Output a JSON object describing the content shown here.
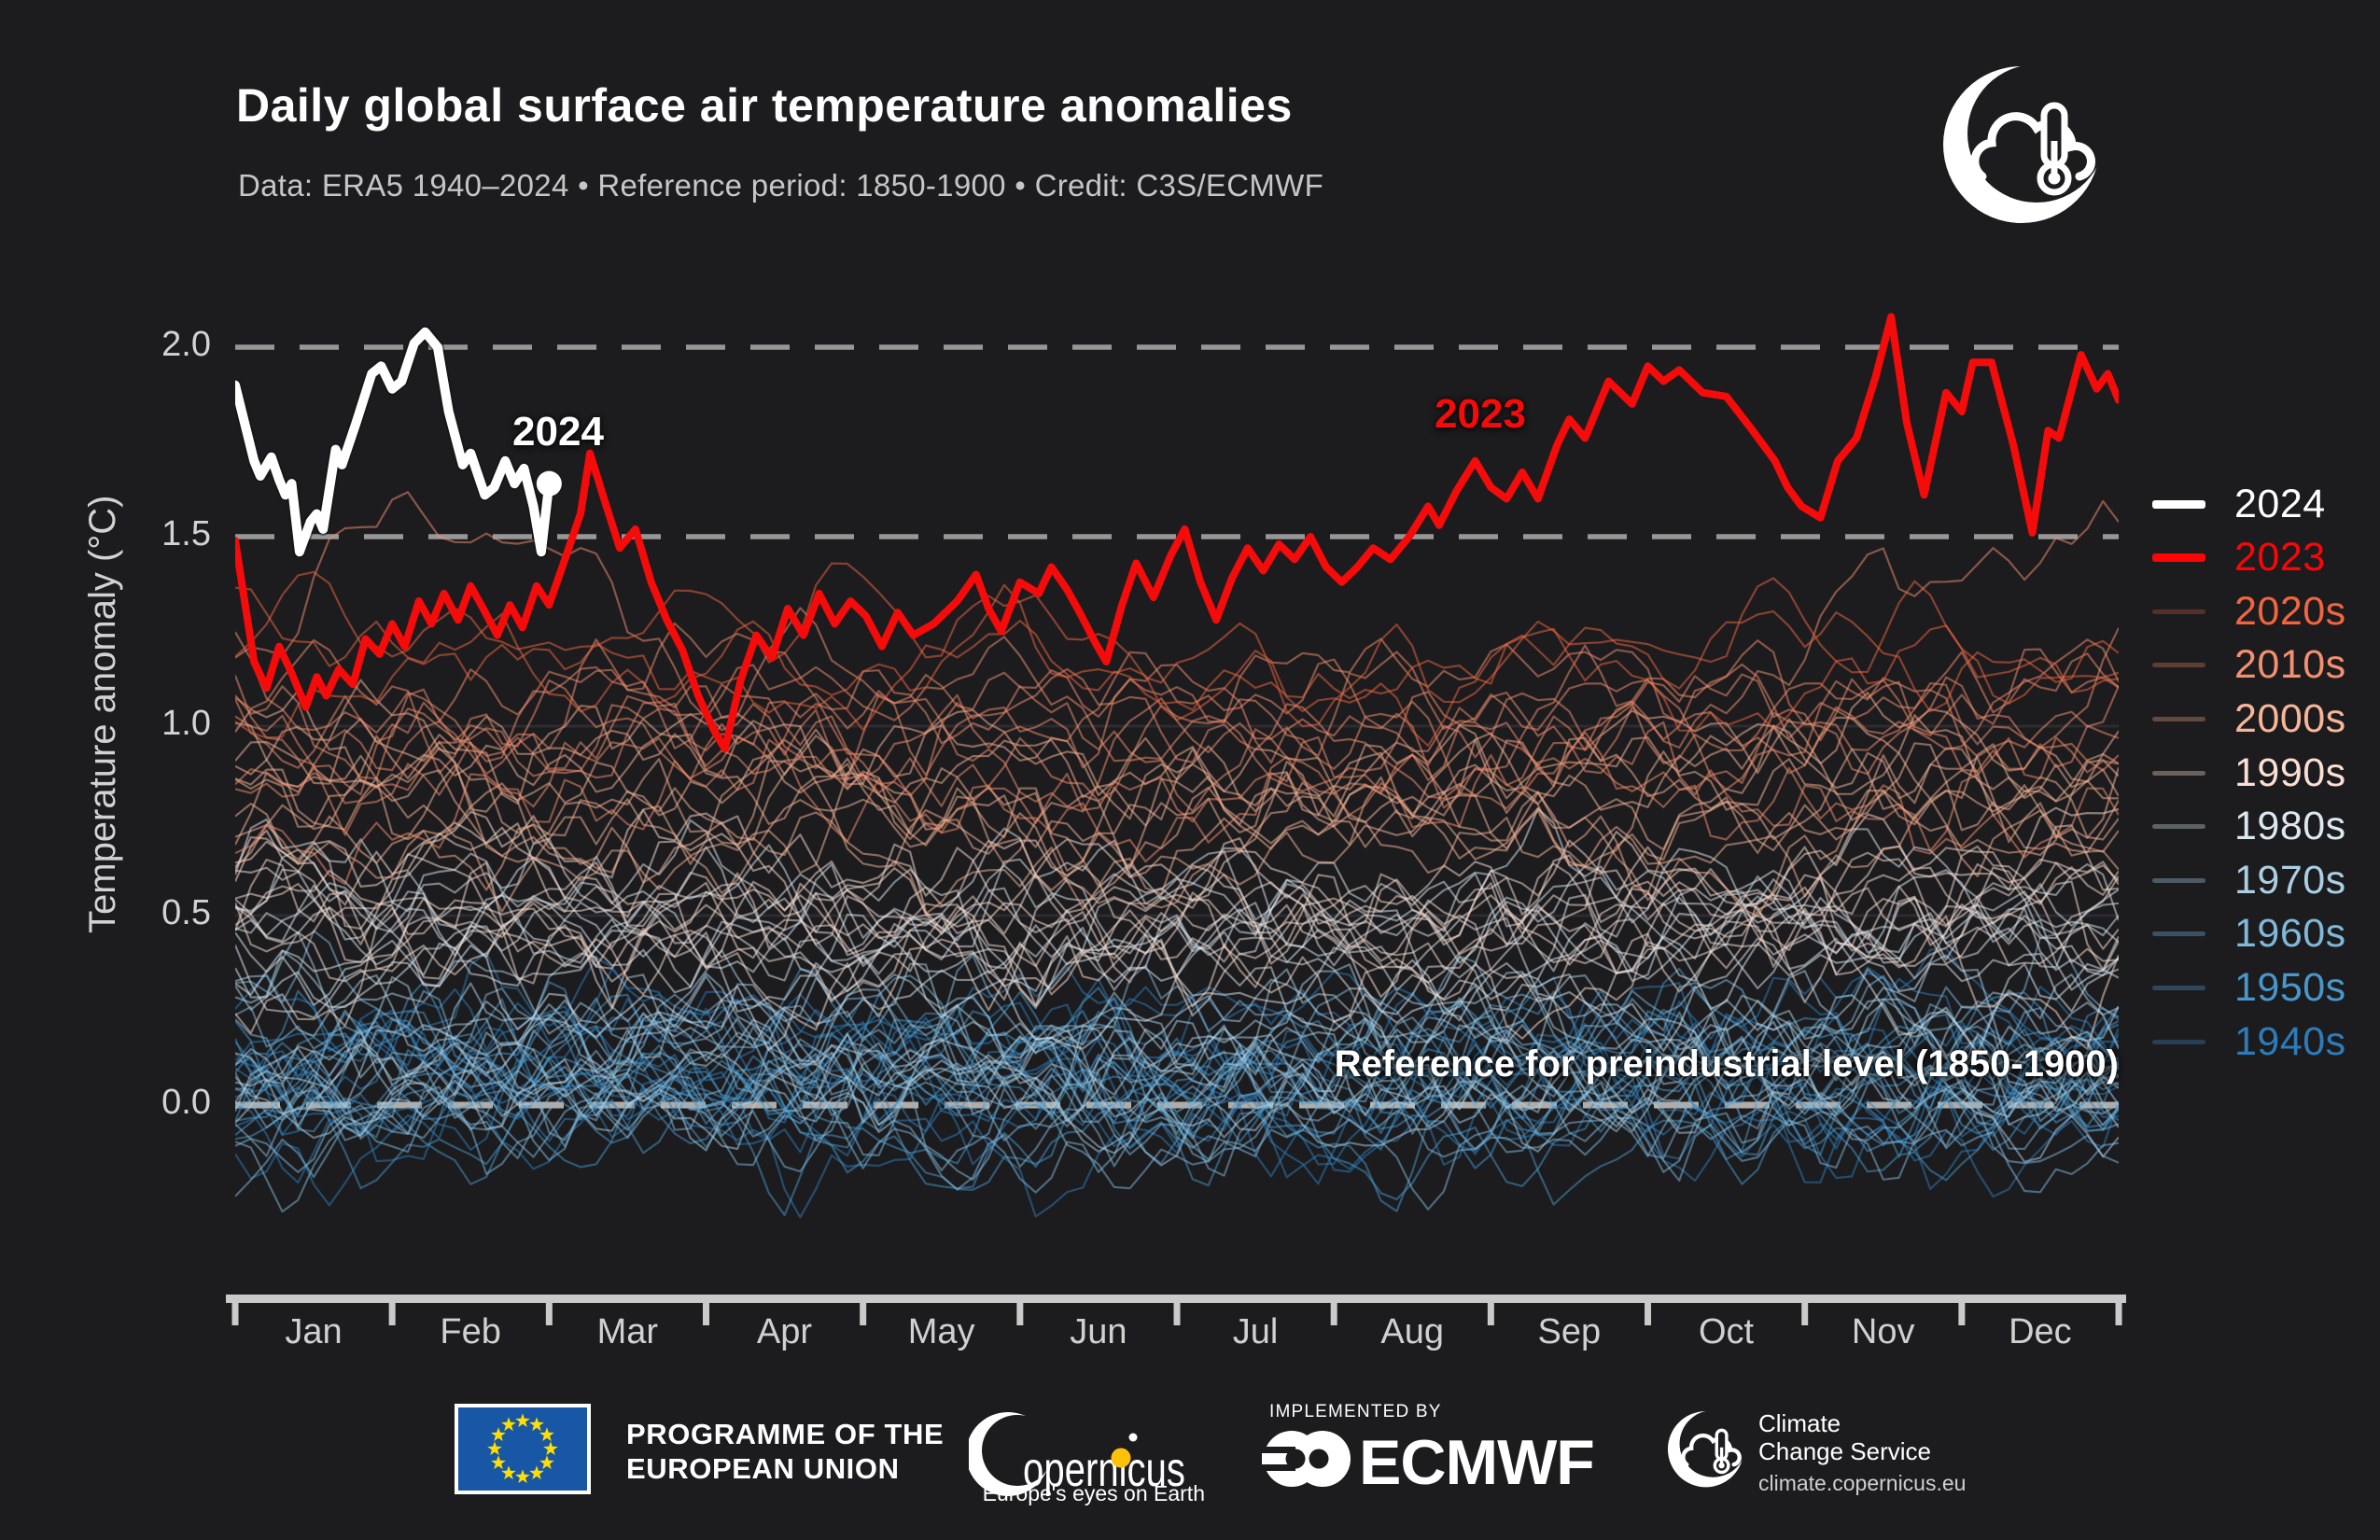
{
  "page": {
    "background": "#1c1c1f"
  },
  "header": {
    "title": "Daily global surface air temperature anomalies",
    "subtitle": "Data: ERA5 1940–2024 • Reference period: 1850-1900 • Credit: C3S/ECMWF"
  },
  "chart_data": {
    "type": "line",
    "title": "Daily global surface air temperature anomalies",
    "subtitle": "Data: ERA5 1940–2024 • Reference period: 1850-1900 • Credit: C3S/ECMWF",
    "ylabel": "Temperature anomaly (°C)",
    "xlabel": "",
    "ylim": [
      -0.62,
      2.12
    ],
    "yticks": [
      0.0,
      0.5,
      1.0,
      1.5,
      2.0
    ],
    "ytick_labels": [
      "0.0",
      "0.5",
      "1.0",
      "1.5",
      "2.0"
    ],
    "months": [
      "Jan",
      "Feb",
      "Mar",
      "Apr",
      "May",
      "Jun",
      "Jul",
      "Aug",
      "Sep",
      "Oct",
      "Nov",
      "Dec"
    ],
    "grid": "minimal",
    "legend_position": "right",
    "reference_lines": [
      {
        "value": 2.0,
        "style": "dashed",
        "color": "#a2a2a2",
        "width": 5.5
      },
      {
        "value": 1.5,
        "style": "dashed",
        "color": "#a2a2a2",
        "width": 5.5
      },
      {
        "value": 0.0,
        "style": "dashed",
        "color": "#bdb9b4",
        "width": 7,
        "label": "Reference for preindustrial level (1850-1900)"
      }
    ],
    "faint_gridlines": [
      0.5,
      1.0
    ],
    "line_opacity": 0.5,
    "highlight_series": [
      {
        "name": "2024",
        "color": "#ffffff",
        "width": 10,
        "end_dot": true,
        "end_dot_radius": 13.5,
        "points": [
          [
            0.0,
            1.9
          ],
          [
            0.06,
            1.8
          ],
          [
            0.12,
            1.7
          ],
          [
            0.16,
            1.66
          ],
          [
            0.23,
            1.71
          ],
          [
            0.28,
            1.65
          ],
          [
            0.32,
            1.61
          ],
          [
            0.36,
            1.64
          ],
          [
            0.41,
            1.46
          ],
          [
            0.48,
            1.54
          ],
          [
            0.52,
            1.56
          ],
          [
            0.56,
            1.52
          ],
          [
            0.64,
            1.73
          ],
          [
            0.68,
            1.69
          ],
          [
            0.77,
            1.8
          ],
          [
            0.87,
            1.93
          ],
          [
            0.93,
            1.95
          ],
          [
            1.0,
            1.89
          ],
          [
            1.06,
            1.91
          ],
          [
            1.14,
            2.01
          ],
          [
            1.21,
            2.04
          ],
          [
            1.29,
            2.0
          ],
          [
            1.36,
            1.83
          ],
          [
            1.45,
            1.69
          ],
          [
            1.5,
            1.72
          ],
          [
            1.59,
            1.61
          ],
          [
            1.65,
            1.63
          ],
          [
            1.72,
            1.7
          ],
          [
            1.78,
            1.64
          ],
          [
            1.84,
            1.68
          ],
          [
            1.9,
            1.58
          ],
          [
            1.95,
            1.46
          ],
          [
            2.0,
            1.64
          ]
        ]
      },
      {
        "name": "2023",
        "color": "#f60b0b",
        "width": 8,
        "end_dot": false,
        "points": [
          [
            0.0,
            1.49
          ],
          [
            0.06,
            1.33
          ],
          [
            0.12,
            1.17
          ],
          [
            0.2,
            1.1
          ],
          [
            0.28,
            1.21
          ],
          [
            0.36,
            1.14
          ],
          [
            0.45,
            1.05
          ],
          [
            0.52,
            1.13
          ],
          [
            0.58,
            1.08
          ],
          [
            0.66,
            1.15
          ],
          [
            0.75,
            1.11
          ],
          [
            0.83,
            1.23
          ],
          [
            0.92,
            1.19
          ],
          [
            1.0,
            1.27
          ],
          [
            1.08,
            1.21
          ],
          [
            1.17,
            1.33
          ],
          [
            1.25,
            1.27
          ],
          [
            1.33,
            1.35
          ],
          [
            1.42,
            1.28
          ],
          [
            1.5,
            1.37
          ],
          [
            1.58,
            1.31
          ],
          [
            1.67,
            1.24
          ],
          [
            1.75,
            1.32
          ],
          [
            1.83,
            1.26
          ],
          [
            1.92,
            1.37
          ],
          [
            2.0,
            1.32
          ],
          [
            2.1,
            1.44
          ],
          [
            2.2,
            1.56
          ],
          [
            2.26,
            1.72
          ],
          [
            2.35,
            1.6
          ],
          [
            2.45,
            1.47
          ],
          [
            2.55,
            1.52
          ],
          [
            2.65,
            1.38
          ],
          [
            2.75,
            1.28
          ],
          [
            2.85,
            1.2
          ],
          [
            2.95,
            1.08
          ],
          [
            3.05,
            0.99
          ],
          [
            3.12,
            0.94
          ],
          [
            3.22,
            1.12
          ],
          [
            3.32,
            1.24
          ],
          [
            3.42,
            1.18
          ],
          [
            3.52,
            1.31
          ],
          [
            3.62,
            1.24
          ],
          [
            3.72,
            1.35
          ],
          [
            3.82,
            1.27
          ],
          [
            3.92,
            1.33
          ],
          [
            4.02,
            1.29
          ],
          [
            4.12,
            1.21
          ],
          [
            4.22,
            1.3
          ],
          [
            4.32,
            1.24
          ],
          [
            4.45,
            1.27
          ],
          [
            4.6,
            1.33
          ],
          [
            4.72,
            1.4
          ],
          [
            4.8,
            1.31
          ],
          [
            4.88,
            1.25
          ],
          [
            5.0,
            1.38
          ],
          [
            5.12,
            1.35
          ],
          [
            5.2,
            1.42
          ],
          [
            5.3,
            1.36
          ],
          [
            5.38,
            1.3
          ],
          [
            5.48,
            1.22
          ],
          [
            5.55,
            1.17
          ],
          [
            5.65,
            1.32
          ],
          [
            5.74,
            1.43
          ],
          [
            5.85,
            1.34
          ],
          [
            5.96,
            1.45
          ],
          [
            6.05,
            1.52
          ],
          [
            6.15,
            1.38
          ],
          [
            6.25,
            1.28
          ],
          [
            6.35,
            1.39
          ],
          [
            6.45,
            1.47
          ],
          [
            6.55,
            1.41
          ],
          [
            6.65,
            1.48
          ],
          [
            6.75,
            1.44
          ],
          [
            6.85,
            1.5
          ],
          [
            6.95,
            1.42
          ],
          [
            7.05,
            1.38
          ],
          [
            7.15,
            1.42
          ],
          [
            7.25,
            1.47
          ],
          [
            7.36,
            1.44
          ],
          [
            7.48,
            1.5
          ],
          [
            7.6,
            1.58
          ],
          [
            7.67,
            1.53
          ],
          [
            7.78,
            1.62
          ],
          [
            7.9,
            1.7
          ],
          [
            8.0,
            1.63
          ],
          [
            8.1,
            1.6
          ],
          [
            8.2,
            1.67
          ],
          [
            8.3,
            1.6
          ],
          [
            8.42,
            1.74
          ],
          [
            8.5,
            1.81
          ],
          [
            8.6,
            1.76
          ],
          [
            8.75,
            1.91
          ],
          [
            8.9,
            1.85
          ],
          [
            9.0,
            1.95
          ],
          [
            9.1,
            1.91
          ],
          [
            9.2,
            1.94
          ],
          [
            9.35,
            1.88
          ],
          [
            9.5,
            1.87
          ],
          [
            9.65,
            1.79
          ],
          [
            9.81,
            1.7
          ],
          [
            9.89,
            1.63
          ],
          [
            9.98,
            1.58
          ],
          [
            10.1,
            1.55
          ],
          [
            10.21,
            1.7
          ],
          [
            10.33,
            1.76
          ],
          [
            10.45,
            1.92
          ],
          [
            10.55,
            2.08
          ],
          [
            10.65,
            1.8
          ],
          [
            10.76,
            1.61
          ],
          [
            10.9,
            1.88
          ],
          [
            11.0,
            1.83
          ],
          [
            11.07,
            1.96
          ],
          [
            11.19,
            1.96
          ],
          [
            11.33,
            1.74
          ],
          [
            11.45,
            1.51
          ],
          [
            11.55,
            1.78
          ],
          [
            11.62,
            1.76
          ],
          [
            11.76,
            1.98
          ],
          [
            11.86,
            1.89
          ],
          [
            11.93,
            1.93
          ],
          [
            12.0,
            1.86
          ]
        ]
      }
    ],
    "decade_series": [
      {
        "name": "1940s",
        "start": 1940,
        "end": 1949,
        "mean": 0.08,
        "spread": 0.15,
        "slope": 0.004,
        "color": "#2d7cba",
        "swatch_color": "#283f55"
      },
      {
        "name": "1950s",
        "start": 1950,
        "end": 1959,
        "mean": 0.05,
        "spread": 0.15,
        "slope": 0.004,
        "color": "#4897ca",
        "swatch_color": "#30485e"
      },
      {
        "name": "1960s",
        "start": 1960,
        "end": 1969,
        "mean": 0.09,
        "spread": 0.13,
        "slope": 0.004,
        "color": "#7fb8da",
        "swatch_color": "#3c5164"
      },
      {
        "name": "1970s",
        "start": 1970,
        "end": 1979,
        "mean": 0.15,
        "spread": 0.13,
        "slope": 0.01,
        "color": "#abcfe3",
        "swatch_color": "#4c5a64"
      },
      {
        "name": "1980s",
        "start": 1980,
        "end": 1989,
        "mean": 0.38,
        "spread": 0.13,
        "slope": 0.012,
        "color": "#dce8f0",
        "swatch_color": "#5c6266"
      },
      {
        "name": "1990s",
        "start": 1990,
        "end": 1999,
        "mean": 0.53,
        "spread": 0.14,
        "slope": 0.012,
        "color": "#fbdfd2",
        "swatch_color": "#6b615c"
      },
      {
        "name": "2000s",
        "start": 2000,
        "end": 2009,
        "mean": 0.76,
        "spread": 0.12,
        "slope": 0.012,
        "color": "#f8b698",
        "swatch_color": "#64493f"
      },
      {
        "name": "2010s",
        "start": 2010,
        "end": 2019,
        "mean": 0.96,
        "spread": 0.13,
        "slope": 0.014,
        "color": "#f58f70",
        "swatch_color": "#5e3d33"
      },
      {
        "name": "2020s",
        "start": 2020,
        "end": 2022,
        "mean": 1.1,
        "spread": 0.09,
        "slope": 0.01,
        "color": "#f2653f",
        "swatch_color": "#553028"
      }
    ],
    "special_years": {
      "early_boost": {
        "1998": 0.22,
        "2016": 0.42,
        "2020": 0.18
      },
      "late_boost": {
        "1997": 0.2,
        "2015": 0.45
      }
    },
    "annotations": {
      "label_2024": "2024",
      "label_2023": "2023",
      "reference": "Reference for preindustrial level (1850-1900)"
    }
  },
  "legend": {
    "items": [
      {
        "label": "2024",
        "swatch_color": "#ffffff",
        "text_color": "#ffffff",
        "thick": true
      },
      {
        "label": "2023",
        "swatch_color": "#fe0505",
        "text_color": "#fe0505",
        "thick": true
      },
      {
        "label": "2020s",
        "swatch_color": "#553028",
        "text_color": "#f2653f",
        "thick": false
      },
      {
        "label": "2010s",
        "swatch_color": "#5e3d33",
        "text_color": "#f58f70",
        "thick": false
      },
      {
        "label": "2000s",
        "swatch_color": "#64493f",
        "text_color": "#f8b698",
        "thick": false
      },
      {
        "label": "1990s",
        "swatch_color": "#6b615c",
        "text_color": "#fbdfd2",
        "thick": false
      },
      {
        "label": "1980s",
        "swatch_color": "#5c6266",
        "text_color": "#dce8f0",
        "thick": false
      },
      {
        "label": "1970s",
        "swatch_color": "#4c5a64",
        "text_color": "#abcfe3",
        "thick": false
      },
      {
        "label": "1960s",
        "swatch_color": "#3c5164",
        "text_color": "#7fb8da",
        "thick": false
      },
      {
        "label": "1950s",
        "swatch_color": "#30485e",
        "text_color": "#4897ca",
        "thick": false
      },
      {
        "label": "1940s",
        "swatch_color": "#283f55",
        "text_color": "#2d7cba",
        "thick": false
      }
    ]
  },
  "footer": {
    "eu": {
      "line1": "PROGRAMME OF THE",
      "line2": "EUROPEAN UNION",
      "flag_blue": "#1757a6",
      "star_yellow": "#ffdd00"
    },
    "copernicus": {
      "word_rest": "opernicus",
      "tagline": "Europe's eyes on Earth",
      "accent": "#fdc10c"
    },
    "ecmwf": {
      "implemented_by": "IMPLEMENTED BY",
      "name": "ECMWF"
    },
    "c3s": {
      "line1": "Climate",
      "line2": "Change Service",
      "url": "climate.copernicus.eu"
    }
  }
}
